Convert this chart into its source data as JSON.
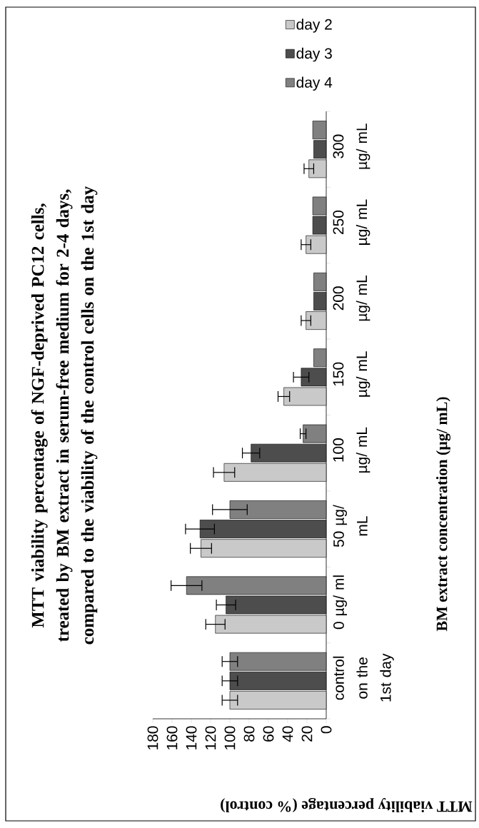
{
  "chart_data": {
    "type": "bar",
    "orientation": "horizontal",
    "title": "MTT viability percentage of NGF-deprived PC12 cells, treated by BM extract in serum-free medium for 2-4 days, compared to the viability of the control cells on the 1st day",
    "xlabel": "MTT viability percentage (% control)",
    "ylabel": "BM extract concentration (µg/ mL)",
    "categories": [
      "300 µg/ mL",
      "250 µg/ mL",
      "200 µg/ mL",
      "150 µg/ mL",
      "100 µg/ mL",
      "50 µg/ mL",
      "0 µg/ ml",
      "control on the 1st day"
    ],
    "series": [
      {
        "name": "day 2",
        "color": "#c9c9c9",
        "values": [
          18,
          21,
          21,
          44,
          106,
          130,
          115,
          100
        ],
        "errors": [
          5,
          5,
          5,
          6,
          11,
          11,
          10,
          8
        ]
      },
      {
        "name": "day 3",
        "color": "#4d4d4d",
        "values": [
          13,
          14,
          13,
          26,
          78,
          131,
          104,
          100
        ],
        "errors": [
          null,
          null,
          null,
          8,
          9,
          15,
          10,
          8
        ]
      },
      {
        "name": "day 4",
        "color": "#808080",
        "values": [
          14,
          14,
          13,
          13,
          24,
          100,
          145,
          100
        ],
        "errors": [
          null,
          null,
          null,
          null,
          3,
          18,
          16,
          8
        ]
      }
    ],
    "xlim": [
      180,
      0
    ],
    "xticks": [
      0,
      20,
      40,
      60,
      80,
      100,
      120,
      140,
      160,
      180
    ],
    "legend": "top right"
  }
}
